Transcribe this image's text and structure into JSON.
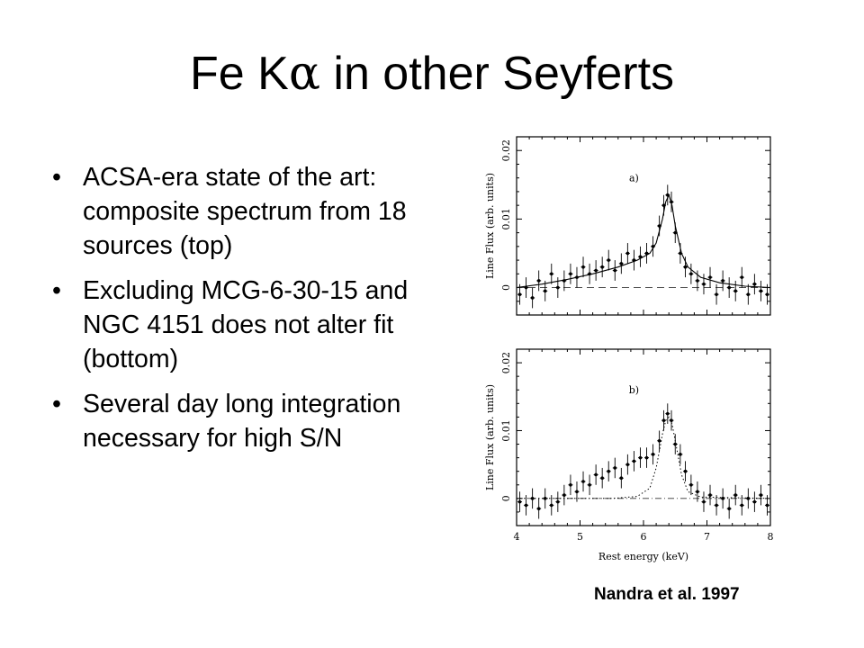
{
  "slide": {
    "title_prefix": "Fe K",
    "title_symbol": "α",
    "title_suffix": " in other Seyferts",
    "bullet_glyph": "•",
    "bullets": [
      "ACSA-era state of the art: composite spectrum from 18 sources (top)",
      "Excluding MCG-6-30-15 and NGC 4151 does not alter fit (bottom)",
      "Several day long integration necessary for high S/N"
    ],
    "citation": "Nandra et al. 1997"
  },
  "chart_data": [
    {
      "type": "scatter",
      "panel_label": "a)",
      "xlabel": "",
      "ylabel": "Line Flux (arb. units)",
      "xlim": [
        4,
        8
      ],
      "ylim": [
        -0.004,
        0.022
      ],
      "yticks": [
        0,
        0.01,
        0.02
      ],
      "ytick_labels": [
        "0",
        "0.01",
        "0.02"
      ],
      "xtick_labels": [],
      "reference_line": {
        "y": 0,
        "style": "dashed"
      },
      "fit_curve": {
        "x": [
          4.0,
          4.4,
          4.8,
          5.2,
          5.6,
          5.9,
          6.1,
          6.2,
          6.3,
          6.35,
          6.4,
          6.45,
          6.5,
          6.6,
          6.7,
          6.9,
          7.2,
          7.6,
          8.0
        ],
        "y": [
          0.0,
          0.0005,
          0.0012,
          0.002,
          0.003,
          0.004,
          0.005,
          0.0065,
          0.01,
          0.0125,
          0.0135,
          0.012,
          0.009,
          0.005,
          0.003,
          0.0015,
          0.0007,
          0.0002,
          0.0
        ]
      },
      "points": {
        "x": [
          4.05,
          4.15,
          4.25,
          4.35,
          4.45,
          4.55,
          4.65,
          4.75,
          4.85,
          4.95,
          5.05,
          5.15,
          5.25,
          5.35,
          5.45,
          5.55,
          5.65,
          5.75,
          5.85,
          5.95,
          6.05,
          6.15,
          6.25,
          6.32,
          6.38,
          6.44,
          6.5,
          6.58,
          6.66,
          6.75,
          6.85,
          6.95,
          7.05,
          7.15,
          7.25,
          7.35,
          7.45,
          7.55,
          7.65,
          7.75,
          7.85,
          7.95
        ],
        "y": [
          -0.001,
          0.0,
          -0.0015,
          0.001,
          -0.0005,
          0.002,
          0.0,
          0.001,
          0.002,
          0.0015,
          0.003,
          0.002,
          0.0025,
          0.003,
          0.004,
          0.0025,
          0.0035,
          0.005,
          0.004,
          0.0045,
          0.005,
          0.006,
          0.009,
          0.012,
          0.0135,
          0.0125,
          0.008,
          0.005,
          0.003,
          0.002,
          0.001,
          0.0005,
          0.0015,
          -0.001,
          0.001,
          0.0,
          -0.0005,
          0.0015,
          -0.001,
          0.0005,
          -0.0005,
          -0.001
        ],
        "err": [
          0.0015,
          0.0015,
          0.0015,
          0.0015,
          0.0015,
          0.0015,
          0.0015,
          0.0015,
          0.0015,
          0.0015,
          0.0015,
          0.0015,
          0.0015,
          0.0015,
          0.0015,
          0.0015,
          0.0015,
          0.0015,
          0.0015,
          0.0015,
          0.0015,
          0.0015,
          0.0015,
          0.0015,
          0.0015,
          0.0015,
          0.0015,
          0.0015,
          0.0015,
          0.0015,
          0.0015,
          0.0015,
          0.0015,
          0.0015,
          0.0015,
          0.0015,
          0.0015,
          0.0015,
          0.0015,
          0.0015,
          0.0015,
          0.0015
        ]
      }
    },
    {
      "type": "scatter",
      "panel_label": "b)",
      "xlabel": "Rest energy (keV)",
      "ylabel": "Line Flux (arb. units)",
      "xlim": [
        4,
        8
      ],
      "ylim": [
        -0.004,
        0.022
      ],
      "yticks": [
        0,
        0.01,
        0.02
      ],
      "ytick_labels": [
        "0",
        "0.01",
        "0.02"
      ],
      "xticks": [
        4,
        5,
        6,
        7,
        8
      ],
      "xtick_labels": [
        "4",
        "5",
        "6",
        "7",
        "8"
      ],
      "reference_line": {
        "y": 0,
        "style": "dash-dot"
      },
      "fit_curve": {
        "x": [
          4.0,
          5.5,
          5.9,
          6.1,
          6.2,
          6.3,
          6.35,
          6.4,
          6.45,
          6.5,
          6.6,
          6.7,
          6.9,
          8.0
        ],
        "y": [
          0.0,
          0.0,
          0.0003,
          0.0015,
          0.0045,
          0.0095,
          0.0115,
          0.012,
          0.011,
          0.0085,
          0.0035,
          0.001,
          0.0002,
          0.0
        ],
        "style": "dotted"
      },
      "points": {
        "x": [
          4.05,
          4.15,
          4.25,
          4.35,
          4.45,
          4.55,
          4.65,
          4.75,
          4.85,
          4.95,
          5.05,
          5.15,
          5.25,
          5.35,
          5.45,
          5.55,
          5.65,
          5.75,
          5.85,
          5.95,
          6.05,
          6.15,
          6.25,
          6.32,
          6.38,
          6.44,
          6.5,
          6.58,
          6.66,
          6.75,
          6.85,
          6.95,
          7.05,
          7.15,
          7.25,
          7.35,
          7.45,
          7.55,
          7.65,
          7.75,
          7.85,
          7.95
        ],
        "y": [
          -0.0005,
          -0.001,
          0.0,
          -0.0015,
          0.0,
          -0.001,
          -0.0005,
          0.0005,
          0.002,
          0.001,
          0.0025,
          0.002,
          0.0035,
          0.003,
          0.004,
          0.0045,
          0.003,
          0.005,
          0.0055,
          0.006,
          0.006,
          0.0065,
          0.0085,
          0.0115,
          0.0125,
          0.0115,
          0.008,
          0.0065,
          0.004,
          0.002,
          0.001,
          -0.0005,
          0.0005,
          -0.001,
          0.0,
          -0.0015,
          0.0005,
          -0.001,
          0.0,
          -0.0005,
          0.0005,
          -0.001
        ],
        "err": [
          0.0015,
          0.0015,
          0.0015,
          0.0015,
          0.0015,
          0.0015,
          0.0015,
          0.0015,
          0.0015,
          0.0015,
          0.0015,
          0.0015,
          0.0015,
          0.0015,
          0.0015,
          0.0015,
          0.0015,
          0.0015,
          0.0015,
          0.0015,
          0.0015,
          0.0015,
          0.0015,
          0.0015,
          0.0015,
          0.0015,
          0.0015,
          0.0015,
          0.0015,
          0.0015,
          0.0015,
          0.0015,
          0.0015,
          0.0015,
          0.0015,
          0.0015,
          0.0015,
          0.0015,
          0.0015,
          0.0015,
          0.0015,
          0.0015
        ]
      }
    }
  ]
}
